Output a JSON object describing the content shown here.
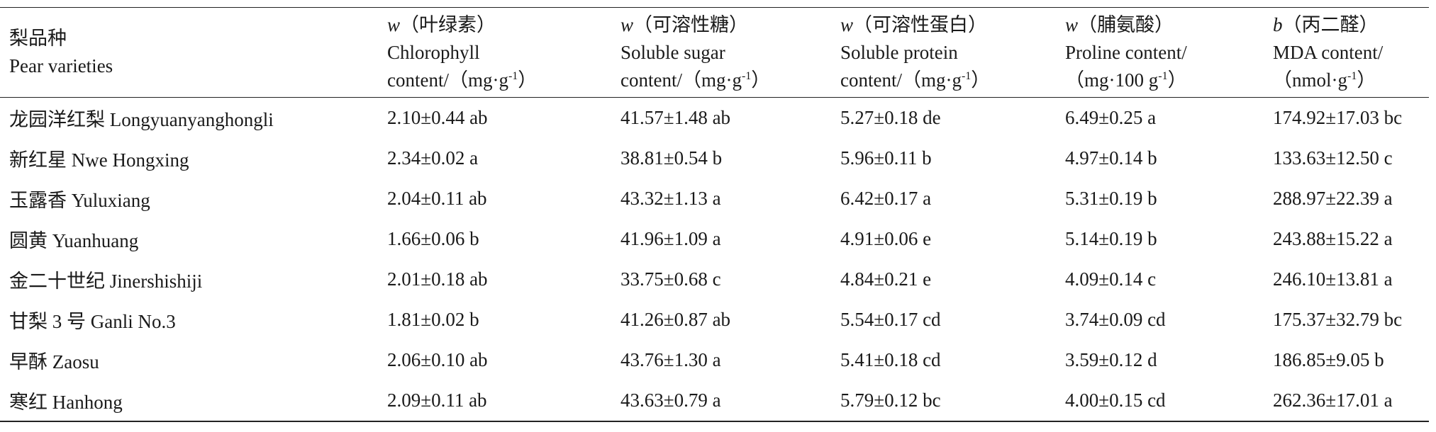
{
  "table": {
    "header": [
      {
        "cn": "梨品种",
        "en": "Pear varieties"
      },
      {
        "symbol": "w",
        "cn": "（叶绿素）",
        "en": "Chlorophyll",
        "unit": [
          "content/（mg·g",
          "-1",
          "）"
        ]
      },
      {
        "symbol": "w",
        "cn": "（可溶性糖）",
        "en": "Soluble sugar",
        "unit": [
          "content/（mg·g",
          "-1",
          "）"
        ]
      },
      {
        "symbol": "w",
        "cn": "（可溶性蛋白）",
        "en": "Soluble protein",
        "unit": [
          "content/（mg·g",
          "-1",
          "）"
        ]
      },
      {
        "symbol": "w",
        "cn": "（脯氨酸）",
        "en": "Proline content/",
        "unit": [
          "（mg·100 g",
          "-1",
          "）"
        ]
      },
      {
        "symbol": "b",
        "cn": "（丙二醛）",
        "en": "MDA content/",
        "unit": [
          "（nmol·g",
          "-1",
          "）"
        ]
      }
    ],
    "rows": [
      [
        "龙园洋红梨 Longyuanyanghongli",
        "2.10±0.44 ab",
        "41.57±1.48 ab",
        "5.27±0.18 de",
        "6.49±0.25 a",
        "174.92±17.03 bc"
      ],
      [
        "新红星 Nwe Hongxing",
        "2.34±0.02 a",
        "38.81±0.54 b",
        "5.96±0.11 b",
        "4.97±0.14 b",
        "133.63±12.50 c"
      ],
      [
        "玉露香 Yuluxiang",
        "2.04±0.11 ab",
        "43.32±1.13 a",
        "6.42±0.17 a",
        "5.31±0.19 b",
        "288.97±22.39 a"
      ],
      [
        "圆黄 Yuanhuang",
        "1.66±0.06 b",
        "41.96±1.09 a",
        "4.91±0.06 e",
        "5.14±0.19 b",
        "243.88±15.22 a"
      ],
      [
        "金二十世纪 Jinershishiji",
        "2.01±0.18 ab",
        "33.75±0.68 c",
        "4.84±0.21 e",
        "4.09±0.14 c",
        "246.10±13.81 a"
      ],
      [
        "甘梨 3 号 Ganli No.3",
        "1.81±0.02 b",
        "41.26±0.87 ab",
        "5.54±0.17 cd",
        "3.74±0.09 cd",
        "175.37±32.79 bc"
      ],
      [
        "早酥 Zaosu",
        "2.06±0.10 ab",
        "43.76±1.30 a",
        "5.41±0.18 cd",
        "3.59±0.12 d",
        "186.85±9.05 b"
      ],
      [
        "寒红 Hanhong",
        "2.09±0.11 ab",
        "43.63±0.79 a",
        "5.79±0.12 bc",
        "4.00±0.15 cd",
        "262.36±17.01 a"
      ]
    ]
  }
}
